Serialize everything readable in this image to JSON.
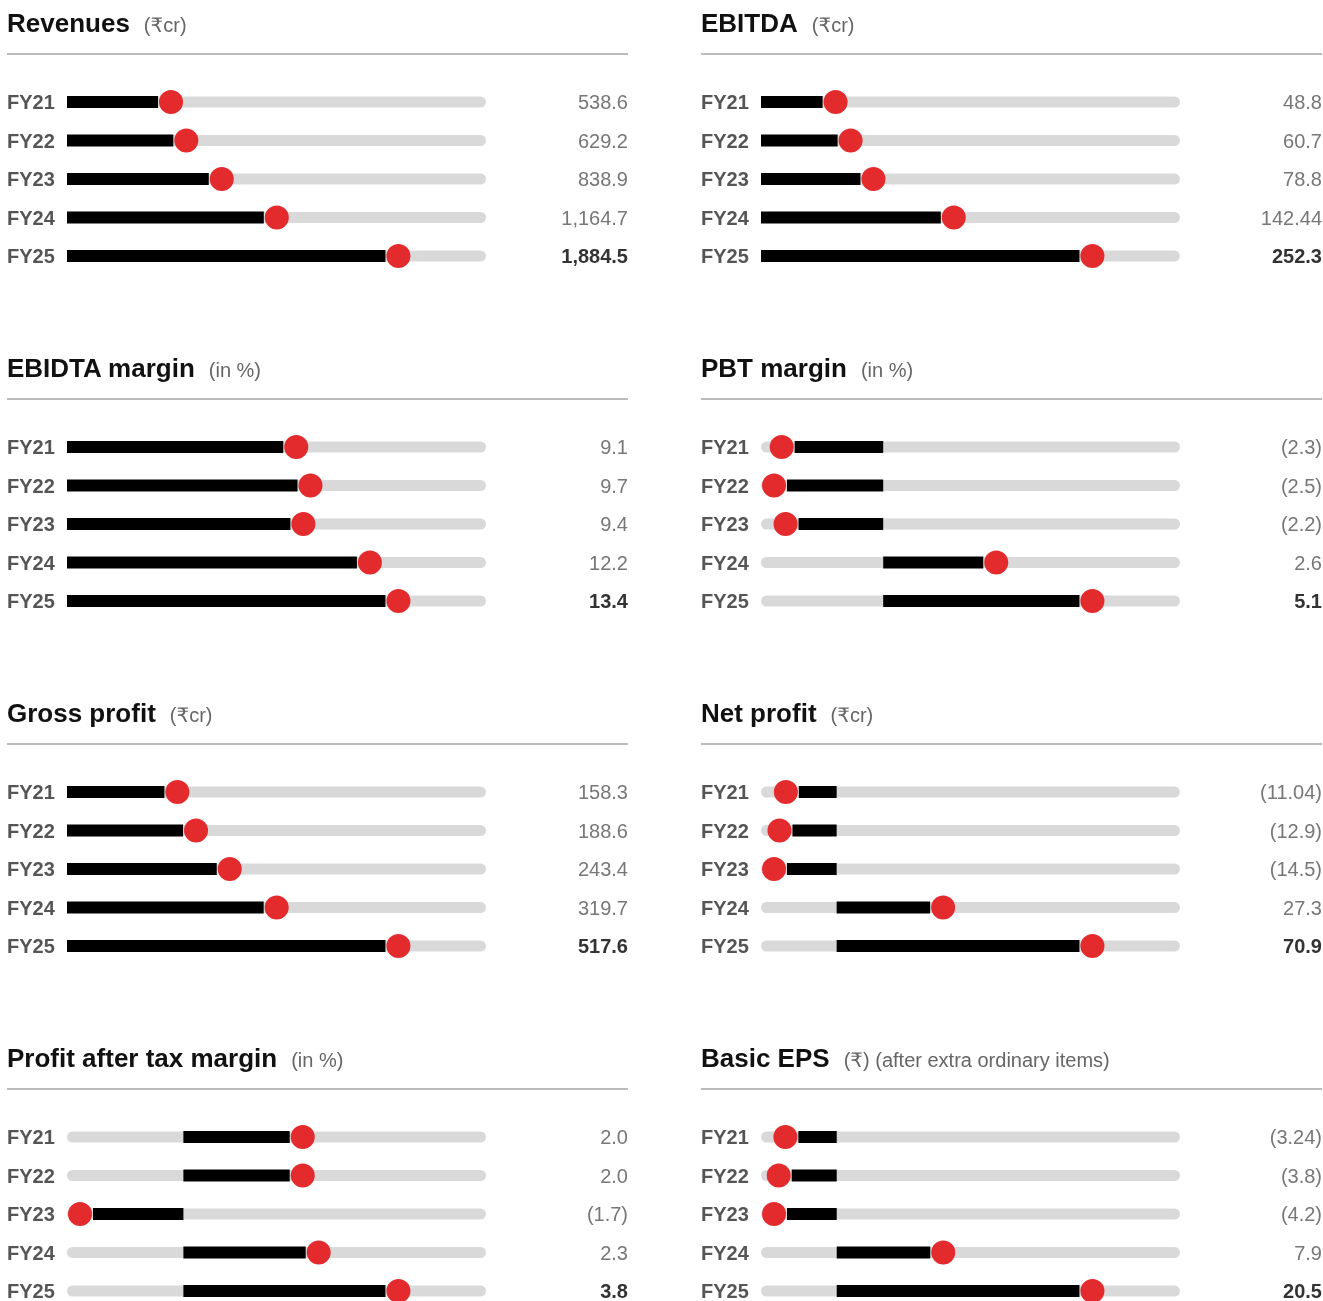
{
  "chart_data": [
    {
      "type": "bar",
      "orientation": "horizontal",
      "title": "Revenues",
      "subtitle": "(₹cr)",
      "categories": [
        "FY21",
        "FY22",
        "FY23",
        "FY24",
        "FY25"
      ],
      "series": [
        {
          "color": "#000000",
          "values": [
            538.6,
            629.2,
            838.9,
            1164.7,
            1884.5
          ],
          "value_labels": [
            "538.6",
            "629.2",
            "838.9",
            "1,164.7",
            "1,884.5"
          ]
        }
      ]
    },
    {
      "type": "bar",
      "orientation": "horizontal",
      "title": "EBITDA",
      "subtitle": "(₹cr)",
      "categories": [
        "FY21",
        "FY22",
        "FY23",
        "FY24",
        "FY25"
      ],
      "series": [
        {
          "color": "#000000",
          "values": [
            48.8,
            60.7,
            78.8,
            142.44,
            252.3
          ],
          "value_labels": [
            "48.8",
            "60.7",
            "78.8",
            "142.44",
            "252.3"
          ]
        }
      ]
    },
    {
      "type": "bar",
      "orientation": "horizontal",
      "title": "EBIDTA margin",
      "subtitle": "(in %)",
      "categories": [
        "FY21",
        "FY22",
        "FY23",
        "FY24",
        "FY25"
      ],
      "series": [
        {
          "color": "#000000",
          "values": [
            9.1,
            9.7,
            9.4,
            12.2,
            13.4
          ],
          "value_labels": [
            "9.1",
            "9.7",
            "9.4",
            "12.2",
            "13.4"
          ]
        }
      ]
    },
    {
      "type": "bar",
      "orientation": "horizontal",
      "title": "PBT margin",
      "subtitle": "(in %)",
      "categories": [
        "FY21",
        "FY22",
        "FY23",
        "FY24",
        "FY25"
      ],
      "series": [
        {
          "color": "#000000",
          "values": [
            -2.3,
            -2.5,
            -2.2,
            2.6,
            5.1
          ],
          "value_labels": [
            "(2.3)",
            "(2.5)",
            "(2.2)",
            "2.6",
            "5.1"
          ]
        }
      ]
    },
    {
      "type": "bar",
      "orientation": "horizontal",
      "title": "Gross profit",
      "subtitle": "(₹cr)",
      "categories": [
        "FY21",
        "FY22",
        "FY23",
        "FY24",
        "FY25"
      ],
      "series": [
        {
          "color": "#000000",
          "values": [
            158.3,
            188.6,
            243.4,
            319.7,
            517.6
          ],
          "value_labels": [
            "158.3",
            "188.6",
            "243.4",
            "319.7",
            "517.6"
          ]
        }
      ]
    },
    {
      "type": "bar",
      "orientation": "horizontal",
      "title": "Net profit",
      "subtitle": "(₹cr)",
      "categories": [
        "FY21",
        "FY22",
        "FY23",
        "FY24",
        "FY25"
      ],
      "series": [
        {
          "color": "#000000",
          "values": [
            -11.04,
            -12.9,
            -14.5,
            27.3,
            70.9
          ],
          "value_labels": [
            "(11.04)",
            "(12.9)",
            "(14.5)",
            "27.3",
            "70.9"
          ]
        }
      ]
    },
    {
      "type": "bar",
      "orientation": "horizontal",
      "title": "Profit after tax margin",
      "subtitle": "(in %)",
      "categories": [
        "FY21",
        "FY22",
        "FY23",
        "FY24",
        "FY25"
      ],
      "series": [
        {
          "color": "#000000",
          "values": [
            2.0,
            2.0,
            -1.7,
            2.3,
            3.8
          ],
          "value_labels": [
            "2.0",
            "2.0",
            "(1.7)",
            "2.3",
            "3.8"
          ]
        }
      ]
    },
    {
      "type": "bar",
      "orientation": "horizontal",
      "title": "Basic EPS",
      "subtitle": "(₹) (after extra ordinary items)",
      "categories": [
        "FY21",
        "FY22",
        "FY23",
        "FY24",
        "FY25"
      ],
      "series": [
        {
          "color": "#000000",
          "values": [
            -3.24,
            -3.8,
            -4.2,
            7.9,
            20.5
          ],
          "value_labels": [
            "(3.24)",
            "(3.8)",
            "(4.2)",
            "7.9",
            "20.5"
          ]
        }
      ]
    }
  ]
}
